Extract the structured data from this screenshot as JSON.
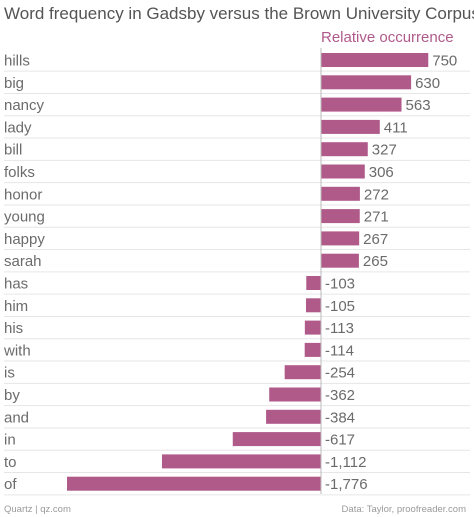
{
  "title": "Word frequency in Gadsby versus the Brown University Corpus",
  "footer": {
    "source_left": "Quartz | qz.com",
    "source_right": "Data: Taylor, proofreader.com"
  },
  "chart_data": {
    "type": "bar",
    "orientation": "horizontal",
    "title": "Word frequency in Gadsby versus the Brown University Corpus",
    "xlabel": "",
    "ylabel": "",
    "series": [
      {
        "name": "Relative occurrence",
        "values": [
          750,
          630,
          563,
          411,
          327,
          306,
          272,
          271,
          267,
          265,
          -103,
          -105,
          -113,
          -114,
          -254,
          -362,
          -384,
          -617,
          -1112,
          -1776
        ]
      }
    ],
    "categories": [
      "hills",
      "big",
      "nancy",
      "lady",
      "bill",
      "folks",
      "honor",
      "young",
      "happy",
      "sarah",
      "has",
      "him",
      "his",
      "with",
      "is",
      "by",
      "and",
      "in",
      "to",
      "of"
    ],
    "value_labels": [
      "750",
      "630",
      "563",
      "411",
      "327",
      "306",
      "272",
      "271",
      "267",
      "265",
      "-103",
      "-105",
      "-113",
      "-114",
      "-254",
      "-362",
      "-384",
      "-617",
      "-1,112",
      "-1,776"
    ],
    "xlim": [
      -1776,
      750
    ],
    "grid": false,
    "legend": "top",
    "colors": {
      "bar": "#b05a8a",
      "legend_text": "#b05a8a",
      "label_text": "#6b6b6b",
      "zero_line": "#bbbbbb",
      "row_divider": "#e6e6e6"
    }
  }
}
